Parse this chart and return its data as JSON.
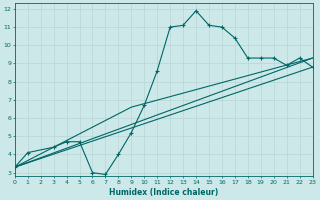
{
  "title": "",
  "xlabel": "Humidex (Indice chaleur)",
  "bg_color": "#cce8e8",
  "grid_color": "#b8d4d4",
  "line_color": "#006666",
  "line1_x": [
    0,
    1,
    3,
    4,
    5,
    6,
    7,
    8,
    9,
    10,
    11,
    12,
    13,
    14,
    15,
    16,
    17,
    18,
    19,
    20,
    21,
    22,
    23
  ],
  "line1_y": [
    3.3,
    4.1,
    4.4,
    4.7,
    4.7,
    3.0,
    2.9,
    4.0,
    5.2,
    6.7,
    8.6,
    11.0,
    11.1,
    11.9,
    11.1,
    11.0,
    10.4,
    9.3,
    9.3,
    9.3,
    8.9,
    9.3,
    8.8
  ],
  "line2_x": [
    0,
    23
  ],
  "line2_y": [
    3.3,
    9.3
  ],
  "line3_x": [
    0,
    23
  ],
  "line3_y": [
    3.3,
    8.8
  ],
  "line4_x": [
    0,
    9,
    23
  ],
  "line4_y": [
    3.3,
    6.6,
    9.3
  ],
  "xlim": [
    0,
    23
  ],
  "ylim": [
    2.8,
    12.3
  ],
  "yticks": [
    3,
    4,
    5,
    6,
    7,
    8,
    9,
    10,
    11,
    12
  ],
  "xticks": [
    0,
    1,
    2,
    3,
    4,
    5,
    6,
    7,
    8,
    9,
    10,
    11,
    12,
    13,
    14,
    15,
    16,
    17,
    18,
    19,
    20,
    21,
    22,
    23
  ]
}
